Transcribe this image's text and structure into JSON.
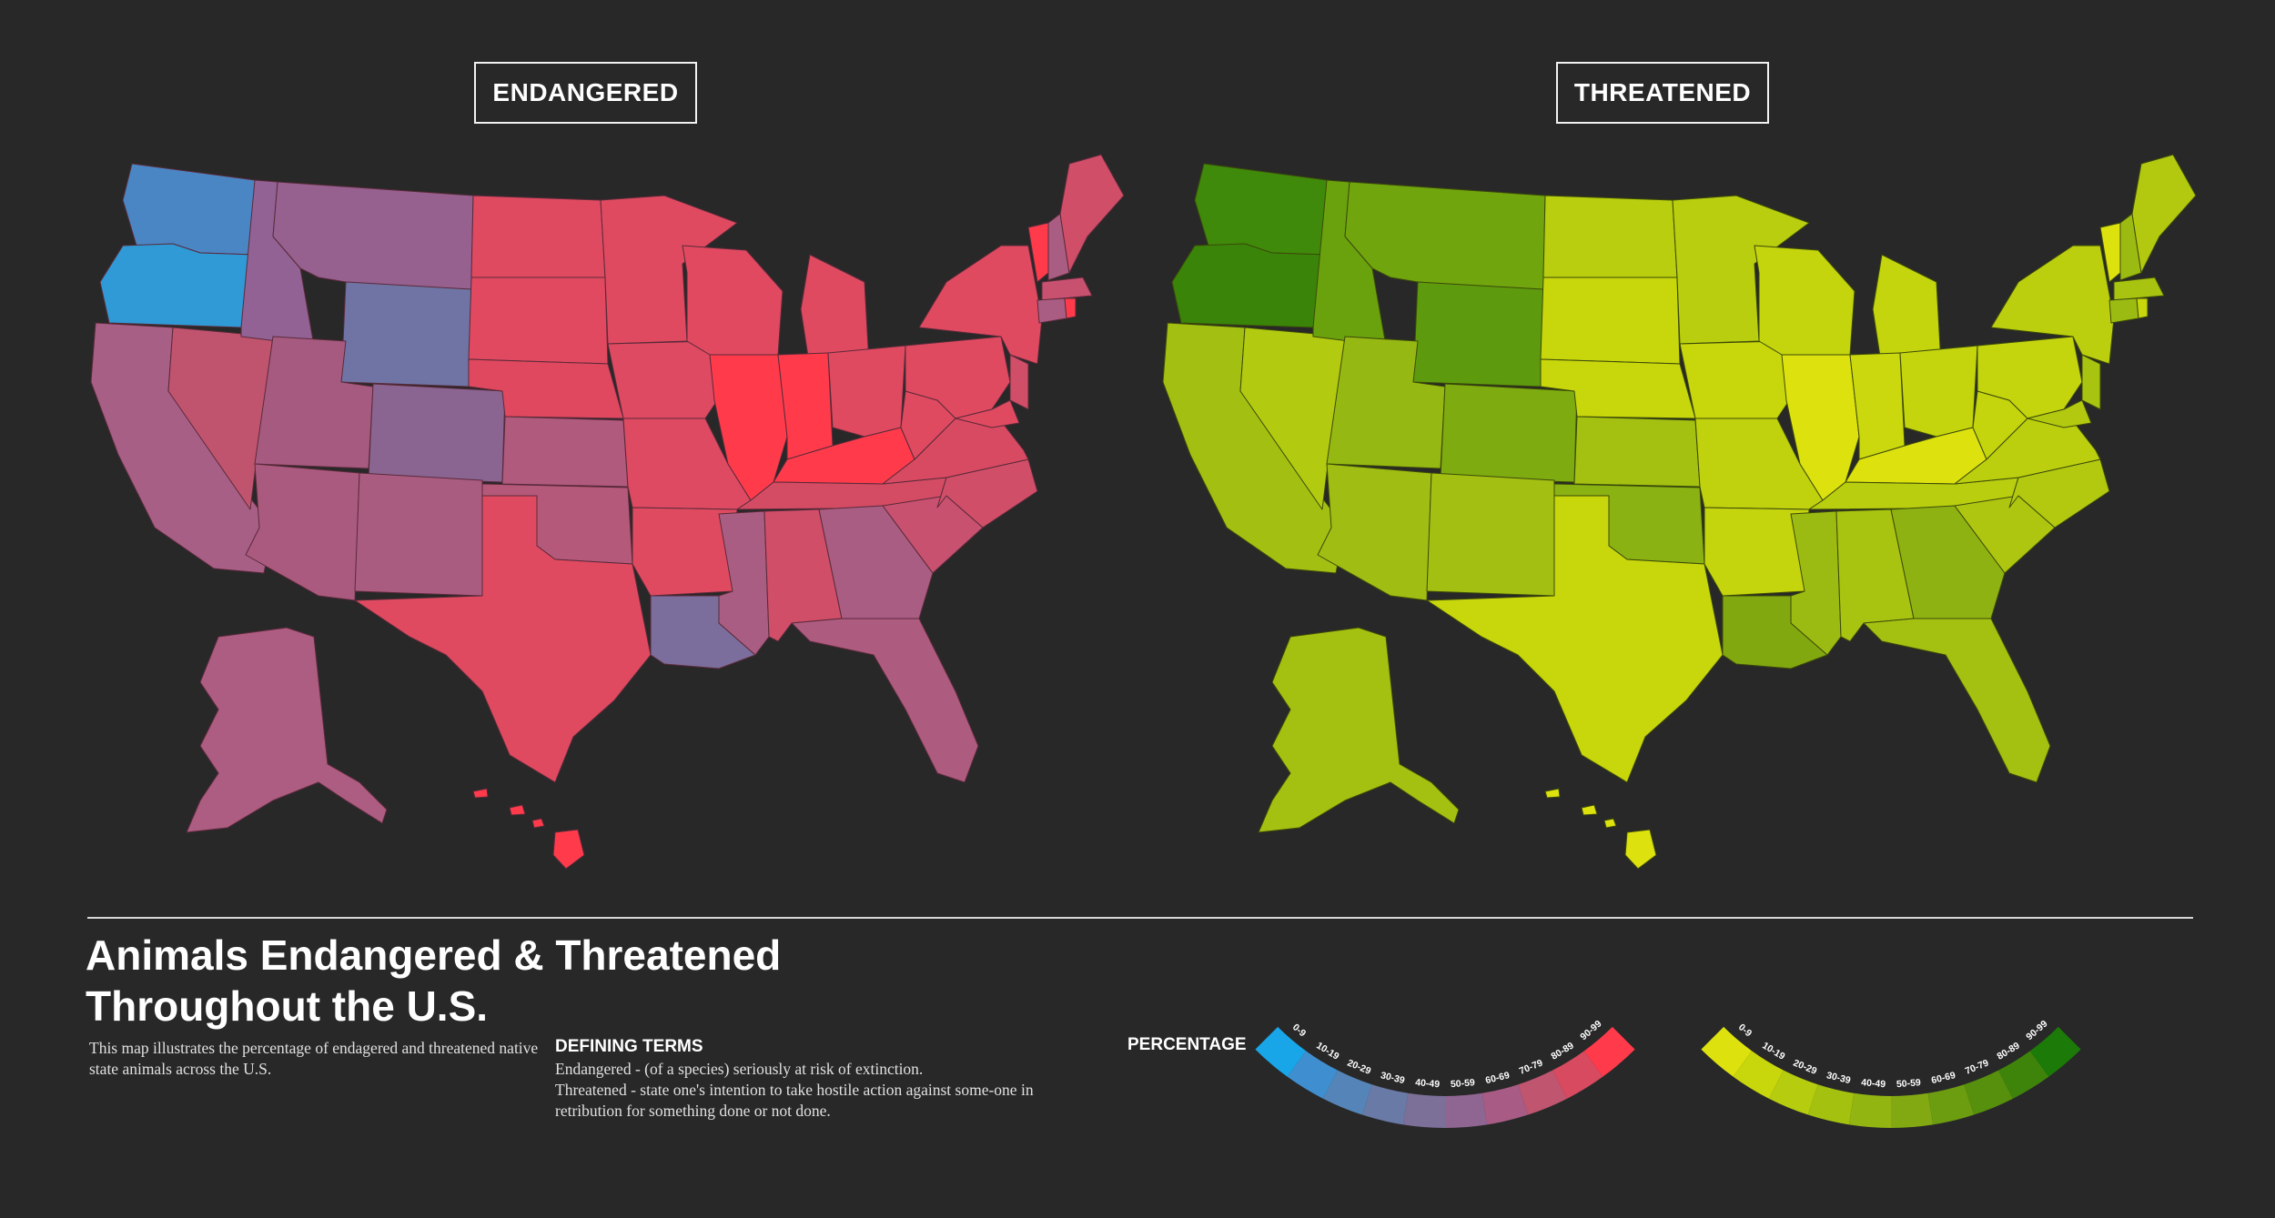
{
  "maps": [
    {
      "title": "ENDANGERED",
      "palette": {
        "low": "#18a6e8",
        "mid": "#8b6694",
        "high": "#ff3a4a"
      }
    },
    {
      "title": "THREATENED",
      "palette": {
        "low": "#dde20e",
        "mid": "#8fb014",
        "high": "#1c7a08"
      }
    }
  ],
  "title_line1": "Animals Endangered & Threatened",
  "title_line2": "Throughout the U.S.",
  "intro": "This map illustrates the percentage of endagered and threatened native state animals across the U.S.",
  "terms_heading": "DEFINING TERMS",
  "terms_endangered": "Endangered - (of a species) seriously at risk of extinction.",
  "terms_threatened": "Threatened - state one's intention to take hostile action against some-one in retribution for something done or not done.",
  "legend_heading": "PERCENTAGE",
  "legend_bins": [
    "0-9",
    "10-19",
    "20-29",
    "30-39",
    "40-49",
    "50-59",
    "60-69",
    "70-79",
    "80-89",
    "90-99"
  ],
  "legend_colors_endangered": [
    "#18a6e8",
    "#3f8fd0",
    "#5585b8",
    "#6a7aa6",
    "#7c6f98",
    "#8f6592",
    "#a85c85",
    "#c05570",
    "#d84a60",
    "#ff3a4a"
  ],
  "legend_colors_threatened": [
    "#dde20e",
    "#c8d60c",
    "#b6cc0e",
    "#a4c10f",
    "#93b512",
    "#82a912",
    "#6c9c10",
    "#56900c",
    "#3f840a",
    "#1c7a08"
  ]
}
